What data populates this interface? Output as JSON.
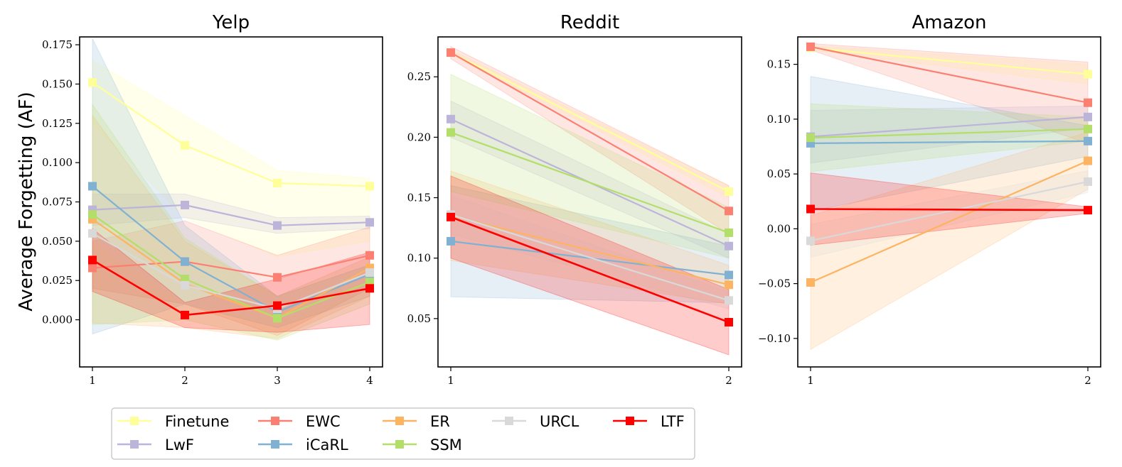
{
  "figure": {
    "ylabel": "Average Forgetting (AF)"
  },
  "methods": [
    {
      "name": "Finetune",
      "color": "#ffff99"
    },
    {
      "name": "LwF",
      "color": "#bcb4d9"
    },
    {
      "name": "EWC",
      "color": "#fb8072"
    },
    {
      "name": "iCaRL",
      "color": "#80b1d3"
    },
    {
      "name": "ER",
      "color": "#fdb462"
    },
    {
      "name": "SSM",
      "color": "#b3de69"
    },
    {
      "name": "URCL",
      "color": "#d9d9d9"
    },
    {
      "name": "LTF",
      "color": "#ff0000"
    }
  ],
  "legend": {
    "rows": [
      [
        "Finetune",
        "EWC",
        "ER",
        "URCL",
        "LTF"
      ],
      [
        "LwF",
        "iCaRL",
        "SSM"
      ]
    ]
  },
  "chart_data": [
    {
      "type": "line",
      "title": "Yelp",
      "x": [
        1,
        2,
        3,
        4
      ],
      "xticks": [
        "1",
        "2",
        "3",
        "4"
      ],
      "ylim": [
        -0.03,
        0.18
      ],
      "yticks": [
        0.0,
        0.025,
        0.05,
        0.075,
        0.1,
        0.125,
        0.15,
        0.175
      ],
      "ytick_labels": [
        "0.000",
        "0.025",
        "0.050",
        "0.075",
        "0.100",
        "0.125",
        "0.150",
        "0.175"
      ],
      "series": [
        {
          "name": "Finetune",
          "values": [
            0.151,
            0.111,
            0.087,
            0.085
          ],
          "lower": [
            0.125,
            0.065,
            0.04,
            0.05
          ],
          "upper": [
            0.165,
            0.13,
            0.095,
            0.09
          ]
        },
        {
          "name": "LwF",
          "values": [
            0.07,
            0.073,
            0.06,
            0.062
          ],
          "lower": [
            0.06,
            0.065,
            0.055,
            0.058
          ],
          "upper": [
            0.08,
            0.08,
            0.065,
            0.066
          ]
        },
        {
          "name": "EWC",
          "values": [
            0.033,
            0.037,
            0.027,
            0.041
          ],
          "lower": [
            0.02,
            0.01,
            -0.01,
            0.02
          ],
          "upper": [
            0.05,
            0.063,
            0.041,
            0.059
          ]
        },
        {
          "name": "iCaRL",
          "values": [
            0.085,
            0.037,
            0.005,
            0.029
          ],
          "lower": [
            -0.009,
            0.01,
            -0.005,
            0.015
          ],
          "upper": [
            0.179,
            0.06,
            0.015,
            0.035
          ]
        },
        {
          "name": "ER",
          "values": [
            0.064,
            0.023,
            0.001,
            0.033
          ],
          "lower": [
            -0.002,
            -0.005,
            -0.012,
            0.015
          ],
          "upper": [
            0.13,
            0.05,
            0.015,
            0.04
          ]
        },
        {
          "name": "SSM",
          "values": [
            0.067,
            0.026,
            0.001,
            0.024
          ],
          "lower": [
            -0.003,
            0.0,
            -0.013,
            0.01
          ],
          "upper": [
            0.137,
            0.052,
            0.015,
            0.035
          ]
        },
        {
          "name": "URCL",
          "values": [
            0.055,
            0.022,
            0.007,
            0.03
          ],
          "lower": [
            0.05,
            0.01,
            0.0,
            0.02
          ],
          "upper": [
            0.06,
            0.03,
            0.015,
            0.04
          ]
        },
        {
          "name": "LTF",
          "values": [
            0.038,
            0.003,
            0.009,
            0.02
          ],
          "lower": [
            0.018,
            -0.005,
            -0.008,
            -0.003
          ],
          "upper": [
            0.058,
            0.011,
            0.026,
            0.043
          ]
        }
      ]
    },
    {
      "type": "line",
      "title": "Reddit",
      "x": [
        1,
        2
      ],
      "xticks": [
        "1",
        "2"
      ],
      "ylim": [
        0.01,
        0.283
      ],
      "yticks": [
        0.05,
        0.1,
        0.15,
        0.2,
        0.25
      ],
      "ytick_labels": [
        "0.05",
        "0.10",
        "0.15",
        "0.20",
        "0.25"
      ],
      "series": [
        {
          "name": "Finetune",
          "values": [
            0.27,
            0.155
          ],
          "lower": [
            0.268,
            0.15
          ],
          "upper": [
            0.272,
            0.16
          ]
        },
        {
          "name": "LwF",
          "values": [
            0.215,
            0.11
          ],
          "lower": [
            0.2,
            0.1
          ],
          "upper": [
            0.23,
            0.12
          ]
        },
        {
          "name": "EWC",
          "values": [
            0.27,
            0.139
          ],
          "lower": [
            0.265,
            0.12
          ],
          "upper": [
            0.275,
            0.16
          ]
        },
        {
          "name": "iCaRL",
          "values": [
            0.114,
            0.086
          ],
          "lower": [
            0.068,
            0.063
          ],
          "upper": [
            0.16,
            0.11
          ]
        },
        {
          "name": "ER",
          "values": [
            0.135,
            0.078
          ],
          "lower": [
            0.098,
            0.062
          ],
          "upper": [
            0.172,
            0.094
          ]
        },
        {
          "name": "SSM",
          "values": [
            0.204,
            0.121
          ],
          "lower": [
            0.155,
            0.1
          ],
          "upper": [
            0.252,
            0.142
          ]
        },
        {
          "name": "URCL",
          "values": [
            0.136,
            0.065
          ],
          "lower": [
            0.12,
            0.058
          ],
          "upper": [
            0.152,
            0.072
          ]
        },
        {
          "name": "LTF",
          "values": [
            0.134,
            0.047
          ],
          "lower": [
            0.1,
            0.02
          ],
          "upper": [
            0.168,
            0.074
          ]
        }
      ]
    },
    {
      "type": "line",
      "title": "Amazon",
      "x": [
        1,
        2
      ],
      "xticks": [
        "1",
        "2"
      ],
      "ylim": [
        -0.126,
        0.175
      ],
      "yticks": [
        -0.1,
        -0.05,
        0.0,
        0.05,
        0.1,
        0.15
      ],
      "ytick_labels": [
        "−0.10",
        "−0.05",
        "0.00",
        "0.05",
        "0.10",
        "0.15"
      ],
      "series": [
        {
          "name": "Finetune",
          "values": [
            0.165,
            0.141
          ],
          "lower": [
            0.163,
            0.132
          ],
          "upper": [
            0.167,
            0.15
          ]
        },
        {
          "name": "LwF",
          "values": [
            0.084,
            0.102
          ],
          "lower": [
            0.06,
            0.092
          ],
          "upper": [
            0.108,
            0.112
          ]
        },
        {
          "name": "EWC",
          "values": [
            0.166,
            0.115
          ],
          "lower": [
            0.163,
            0.078
          ],
          "upper": [
            0.169,
            0.152
          ]
        },
        {
          "name": "iCaRL",
          "values": [
            0.078,
            0.08
          ],
          "lower": [
            0.016,
            0.066
          ],
          "upper": [
            0.139,
            0.094
          ]
        },
        {
          "name": "ER",
          "values": [
            -0.049,
            0.062
          ],
          "lower": [
            -0.11,
            0.036
          ],
          "upper": [
            0.012,
            0.088
          ]
        },
        {
          "name": "SSM",
          "values": [
            0.083,
            0.091
          ],
          "lower": [
            0.052,
            0.08
          ],
          "upper": [
            0.114,
            0.102
          ]
        },
        {
          "name": "URCL",
          "values": [
            -0.011,
            0.043
          ],
          "lower": [
            -0.026,
            0.033
          ],
          "upper": [
            0.004,
            0.053
          ]
        },
        {
          "name": "LTF",
          "values": [
            0.018,
            0.017
          ],
          "lower": [
            -0.015,
            0.014
          ],
          "upper": [
            0.051,
            0.02
          ]
        }
      ]
    }
  ]
}
